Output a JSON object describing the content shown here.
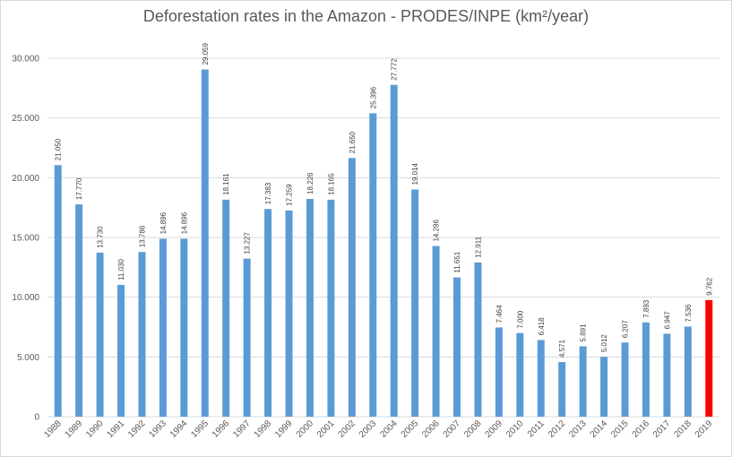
{
  "chart_data": {
    "type": "bar",
    "title": "Deforestation rates in the Amazon - PRODES/INPE (km²/year)",
    "xlabel": "",
    "ylabel": "",
    "ylim": [
      0,
      30000
    ],
    "yticks": [
      0,
      5000,
      10000,
      15000,
      20000,
      25000,
      30000
    ],
    "ytick_labels": [
      "0",
      "5.000",
      "10.000",
      "15.000",
      "20.000",
      "25.000",
      "30.000"
    ],
    "grid": true,
    "legend": "none",
    "categories": [
      "1988",
      "1989",
      "1990",
      "1991",
      "1992",
      "1993",
      "1994",
      "1995",
      "1996",
      "1997",
      "1998",
      "1999",
      "2000",
      "2001",
      "2002",
      "2003",
      "2004",
      "2005",
      "2006",
      "2007",
      "2008",
      "2009",
      "2010",
      "2011",
      "2012",
      "2013",
      "2014",
      "2015",
      "2016",
      "2017",
      "2018",
      "2019"
    ],
    "values": [
      21050,
      17770,
      13730,
      11030,
      13786,
      14896,
      14896,
      29059,
      18161,
      13227,
      17383,
      17259,
      18226,
      18165,
      21650,
      25396,
      27772,
      19014,
      14286,
      11651,
      12911,
      7464,
      7000,
      6418,
      4571,
      5891,
      5012,
      6207,
      7893,
      6947,
      7536,
      9762
    ],
    "value_labels": [
      "21.050",
      "17.770",
      "13.730",
      "11.030",
      "13.786",
      "14.896",
      "14.896",
      "29.059",
      "18.161",
      "13.227",
      "17.383",
      "17.259",
      "18.226",
      "18.165",
      "21.650",
      "25.396",
      "27.772",
      "19.014",
      "14.286",
      "11.651",
      "12.911",
      "7.464",
      "7.000",
      "6.418",
      "4.571",
      "5.891",
      "5.012",
      "6.207",
      "7.893",
      "6.947",
      "7.536",
      "9.762"
    ],
    "colors": {
      "bar": "#5b9bd5",
      "highlight": "#ff0000",
      "grid": "#d9d9d9"
    },
    "highlight_index": 31
  }
}
